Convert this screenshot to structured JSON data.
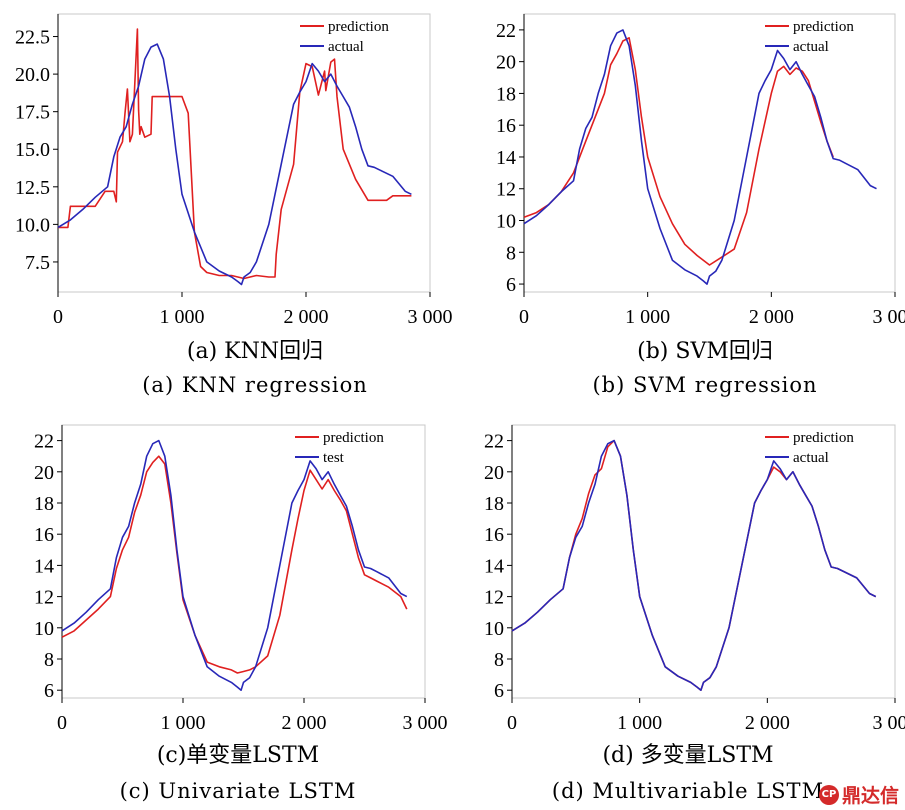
{
  "chart_data": [
    {
      "id": "a",
      "type": "line",
      "caption_zh": "(a) KNN回归",
      "caption_en": "(a) KNN regression",
      "xlim": [
        0,
        3000
      ],
      "ylim": [
        5.5,
        24
      ],
      "xticks": [
        0,
        1000,
        2000,
        3000
      ],
      "xtick_labels": [
        "0",
        "1 000",
        "2 000",
        "3 000"
      ],
      "yticks": [
        7.5,
        10.0,
        12.5,
        15.0,
        17.5,
        20.0,
        22.5
      ],
      "ytick_labels": [
        "7.5",
        "10.0",
        "12.5",
        "15.0",
        "17.5",
        "20.0",
        "22.5"
      ],
      "legend_position": "top-right",
      "series": [
        {
          "name": "prediction",
          "color": "#e02020",
          "x": [
            0,
            80,
            100,
            300,
            380,
            450,
            470,
            480,
            520,
            540,
            560,
            580,
            600,
            620,
            640,
            650,
            660,
            670,
            700,
            750,
            760,
            1000,
            1050,
            1100,
            1150,
            1200,
            1300,
            1400,
            1500,
            1600,
            1700,
            1750,
            1760,
            1800,
            1900,
            1950,
            2000,
            2050,
            2100,
            2150,
            2160,
            2200,
            2230,
            2250,
            2300,
            2400,
            2500,
            2650,
            2700,
            2750,
            2850
          ],
          "y": [
            9.8,
            9.8,
            11.2,
            11.2,
            12.2,
            12.2,
            11.5,
            14.8,
            15.5,
            17.4,
            19.0,
            15.5,
            16.0,
            19.5,
            23.0,
            17.6,
            16.0,
            16.5,
            15.8,
            16.0,
            18.5,
            18.5,
            17.4,
            9.5,
            7.2,
            6.8,
            6.6,
            6.6,
            6.4,
            6.6,
            6.5,
            6.5,
            8.0,
            11.0,
            14.0,
            18.8,
            20.7,
            20.5,
            18.6,
            20.2,
            18.9,
            20.8,
            21.0,
            18.5,
            15.0,
            13.0,
            11.6,
            11.6,
            11.9,
            11.9,
            11.9
          ]
        },
        {
          "name": "actual",
          "color": "#2828b8",
          "x": [
            0,
            100,
            200,
            300,
            400,
            450,
            500,
            550,
            600,
            650,
            700,
            750,
            800,
            850,
            900,
            950,
            1000,
            1100,
            1200,
            1300,
            1400,
            1450,
            1480,
            1500,
            1550,
            1600,
            1700,
            1800,
            1900,
            1950,
            2000,
            2050,
            2100,
            2150,
            2200,
            2250,
            2300,
            2350,
            2400,
            2450,
            2500,
            2550,
            2600,
            2700,
            2800,
            2850
          ],
          "y": [
            9.8,
            10.3,
            11.0,
            11.8,
            12.5,
            14.5,
            15.8,
            16.5,
            18.0,
            19.2,
            21.0,
            21.8,
            22.0,
            21.0,
            18.5,
            15.0,
            12.0,
            9.5,
            7.5,
            6.9,
            6.5,
            6.2,
            6.0,
            6.5,
            6.8,
            7.5,
            10.0,
            14.0,
            18.0,
            18.8,
            19.5,
            20.7,
            20.2,
            19.5,
            20.0,
            19.2,
            18.5,
            17.8,
            16.5,
            15.0,
            13.9,
            13.8,
            13.6,
            13.2,
            12.2,
            12.0
          ]
        }
      ],
      "legend_labels": [
        "prediction",
        "actual"
      ]
    },
    {
      "id": "b",
      "type": "line",
      "caption_zh": "(b) SVM回归",
      "caption_en": "(b) SVM regression",
      "xlim": [
        0,
        3000
      ],
      "ylim": [
        5.5,
        23
      ],
      "xticks": [
        0,
        1000,
        2000,
        3000
      ],
      "xtick_labels": [
        "0",
        "1 000",
        "2 000",
        "3 000"
      ],
      "yticks": [
        6,
        8,
        10,
        12,
        14,
        16,
        18,
        20,
        22
      ],
      "ytick_labels": [
        "6",
        "8",
        "10",
        "12",
        "14",
        "16",
        "18",
        "20",
        "22"
      ],
      "legend_position": "top-right",
      "series": [
        {
          "name": "prediction",
          "color": "#e02020",
          "x": [
            0,
            100,
            200,
            300,
            400,
            500,
            600,
            650,
            700,
            750,
            800,
            850,
            900,
            950,
            1000,
            1100,
            1200,
            1300,
            1400,
            1500,
            1600,
            1700,
            1800,
            1900,
            2000,
            2050,
            2100,
            2150,
            2200,
            2250,
            2300,
            2350,
            2400,
            2450,
            2500
          ],
          "y": [
            10.2,
            10.5,
            11.0,
            11.8,
            13.0,
            15.0,
            17.0,
            18.0,
            19.8,
            20.5,
            21.3,
            21.5,
            19.5,
            16.5,
            14.0,
            11.5,
            9.8,
            8.5,
            7.8,
            7.2,
            7.7,
            8.2,
            10.5,
            14.5,
            18.0,
            19.4,
            19.7,
            19.2,
            19.6,
            19.4,
            18.8,
            17.5,
            16.2,
            15.0,
            14.0
          ]
        },
        {
          "name": "actual",
          "color": "#2828b8",
          "x": [
            0,
            100,
            200,
            300,
            400,
            450,
            500,
            550,
            600,
            650,
            700,
            750,
            800,
            850,
            900,
            950,
            1000,
            1100,
            1200,
            1300,
            1400,
            1450,
            1480,
            1500,
            1550,
            1600,
            1700,
            1800,
            1900,
            1950,
            2000,
            2050,
            2100,
            2150,
            2200,
            2250,
            2300,
            2350,
            2400,
            2450,
            2500,
            2550,
            2600,
            2700,
            2800,
            2850
          ],
          "y": [
            9.8,
            10.3,
            11.0,
            11.8,
            12.5,
            14.5,
            15.8,
            16.5,
            18.0,
            19.2,
            21.0,
            21.8,
            22.0,
            21.0,
            18.5,
            15.0,
            12.0,
            9.5,
            7.5,
            6.9,
            6.5,
            6.2,
            6.0,
            6.5,
            6.8,
            7.5,
            10.0,
            14.0,
            18.0,
            18.8,
            19.5,
            20.7,
            20.2,
            19.5,
            20.0,
            19.2,
            18.5,
            17.8,
            16.5,
            15.0,
            13.9,
            13.8,
            13.6,
            13.2,
            12.2,
            12.0
          ]
        }
      ],
      "legend_labels": [
        "prediction",
        "actual"
      ]
    },
    {
      "id": "c",
      "type": "line",
      "caption_zh": "(c)单变量LSTM",
      "caption_en": "(c) Univariate LSTM",
      "xlim": [
        0,
        3000
      ],
      "ylim": [
        5.5,
        23
      ],
      "xticks": [
        0,
        1000,
        2000,
        3000
      ],
      "xtick_labels": [
        "0",
        "1 000",
        "2 000",
        "3 000"
      ],
      "yticks": [
        6,
        8,
        10,
        12,
        14,
        16,
        18,
        20,
        22
      ],
      "ytick_labels": [
        "6",
        "8",
        "10",
        "12",
        "14",
        "16",
        "18",
        "20",
        "22"
      ],
      "legend_position": "top-right",
      "series": [
        {
          "name": "prediction",
          "color": "#e02020",
          "x": [
            0,
            100,
            200,
            300,
            400,
            450,
            500,
            550,
            600,
            650,
            700,
            750,
            800,
            850,
            900,
            950,
            1000,
            1100,
            1200,
            1300,
            1400,
            1450,
            1500,
            1550,
            1600,
            1700,
            1800,
            1900,
            1950,
            2000,
            2050,
            2100,
            2150,
            2200,
            2250,
            2300,
            2350,
            2400,
            2450,
            2500,
            2550,
            2600,
            2700,
            2800,
            2850
          ],
          "y": [
            9.4,
            9.8,
            10.5,
            11.2,
            12.0,
            13.8,
            15.0,
            15.8,
            17.4,
            18.5,
            20.0,
            20.6,
            21.0,
            20.5,
            18.0,
            14.8,
            11.8,
            9.5,
            7.8,
            7.5,
            7.3,
            7.1,
            7.2,
            7.3,
            7.5,
            8.2,
            10.8,
            15.0,
            17.0,
            18.8,
            20.1,
            19.5,
            18.9,
            19.5,
            18.8,
            18.2,
            17.5,
            16.0,
            14.5,
            13.4,
            13.2,
            13.0,
            12.6,
            12.0,
            11.2
          ]
        },
        {
          "name": "test",
          "color": "#2828b8",
          "x": [
            0,
            100,
            200,
            300,
            400,
            450,
            500,
            550,
            600,
            650,
            700,
            750,
            800,
            850,
            900,
            950,
            1000,
            1100,
            1200,
            1300,
            1400,
            1450,
            1480,
            1500,
            1550,
            1600,
            1700,
            1800,
            1900,
            1950,
            2000,
            2050,
            2100,
            2150,
            2200,
            2250,
            2300,
            2350,
            2400,
            2450,
            2500,
            2550,
            2600,
            2700,
            2800,
            2850
          ],
          "y": [
            9.8,
            10.3,
            11.0,
            11.8,
            12.5,
            14.5,
            15.8,
            16.5,
            18.0,
            19.2,
            21.0,
            21.8,
            22.0,
            21.0,
            18.5,
            15.0,
            12.0,
            9.5,
            7.5,
            6.9,
            6.5,
            6.2,
            6.0,
            6.5,
            6.8,
            7.5,
            10.0,
            14.0,
            18.0,
            18.8,
            19.5,
            20.7,
            20.2,
            19.5,
            20.0,
            19.2,
            18.5,
            17.8,
            16.5,
            15.0,
            13.9,
            13.8,
            13.6,
            13.2,
            12.2,
            12.0
          ]
        }
      ],
      "legend_labels": [
        "prediction",
        "test"
      ]
    },
    {
      "id": "d",
      "type": "line",
      "caption_zh": "(d) 多变量LSTM",
      "caption_en": "(d) Multivariable LSTM",
      "xlim": [
        0,
        3000
      ],
      "ylim": [
        5.5,
        23
      ],
      "xticks": [
        0,
        1000,
        2000,
        3000
      ],
      "xtick_labels": [
        "0",
        "1 000",
        "2 000",
        "3 000"
      ],
      "yticks": [
        6,
        8,
        10,
        12,
        14,
        16,
        18,
        20,
        22
      ],
      "ytick_labels": [
        "6",
        "8",
        "10",
        "12",
        "14",
        "16",
        "18",
        "20",
        "22"
      ],
      "legend_position": "top-right",
      "series": [
        {
          "name": "prediction",
          "color": "#e02020",
          "x": [
            0,
            100,
            200,
            300,
            400,
            450,
            500,
            550,
            600,
            650,
            700,
            750,
            800,
            850,
            900,
            950,
            1000,
            1100,
            1200,
            1300,
            1400,
            1450,
            1480,
            1500,
            1550,
            1600,
            1700,
            1800,
            1900,
            1950,
            2000,
            2050,
            2100,
            2150,
            2200,
            2250,
            2300,
            2350,
            2400,
            2450,
            2500,
            2550,
            2600,
            2700,
            2800,
            2850
          ],
          "y": [
            9.8,
            10.3,
            11.0,
            11.8,
            12.5,
            14.5,
            16.0,
            17.0,
            18.6,
            19.8,
            20.2,
            21.6,
            22.0,
            21.0,
            18.5,
            15.0,
            12.0,
            9.5,
            7.5,
            6.9,
            6.5,
            6.2,
            6.0,
            6.5,
            6.8,
            7.5,
            10.0,
            14.0,
            18.0,
            18.8,
            19.5,
            20.3,
            20.0,
            19.5,
            20.0,
            19.2,
            18.5,
            17.8,
            16.5,
            15.0,
            13.9,
            13.8,
            13.6,
            13.2,
            12.2,
            12.0
          ]
        },
        {
          "name": "actual",
          "color": "#2828b8",
          "x": [
            0,
            100,
            200,
            300,
            400,
            450,
            500,
            550,
            600,
            650,
            700,
            750,
            800,
            850,
            900,
            950,
            1000,
            1100,
            1200,
            1300,
            1400,
            1450,
            1480,
            1500,
            1550,
            1600,
            1700,
            1800,
            1900,
            1950,
            2000,
            2050,
            2100,
            2150,
            2200,
            2250,
            2300,
            2350,
            2400,
            2450,
            2500,
            2550,
            2600,
            2700,
            2800,
            2850
          ],
          "y": [
            9.8,
            10.3,
            11.0,
            11.8,
            12.5,
            14.5,
            15.8,
            16.5,
            18.0,
            19.2,
            21.0,
            21.8,
            22.0,
            21.0,
            18.5,
            15.0,
            12.0,
            9.5,
            7.5,
            6.9,
            6.5,
            6.2,
            6.0,
            6.5,
            6.8,
            7.5,
            10.0,
            14.0,
            18.0,
            18.8,
            19.5,
            20.7,
            20.2,
            19.5,
            20.0,
            19.2,
            18.5,
            17.8,
            16.5,
            15.0,
            13.9,
            13.8,
            13.6,
            13.2,
            12.2,
            12.0
          ]
        }
      ],
      "legend_labels": [
        "prediction",
        "actual"
      ]
    }
  ],
  "watermark": {
    "text": "鼎达信",
    "logo_text": "CP",
    "color": "#d42a2a"
  }
}
